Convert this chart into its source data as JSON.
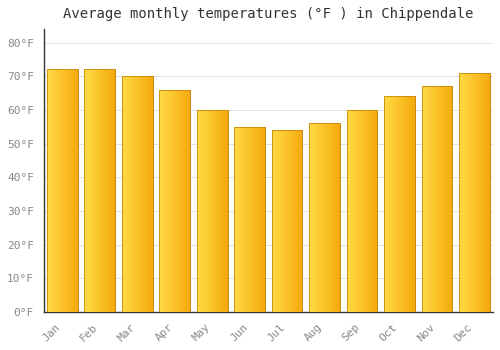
{
  "title": "Average monthly temperatures (°F ) in Chippendale",
  "months": [
    "Jan",
    "Feb",
    "Mar",
    "Apr",
    "May",
    "Jun",
    "Jul",
    "Aug",
    "Sep",
    "Oct",
    "Nov",
    "Dec"
  ],
  "values": [
    72,
    72,
    70,
    66,
    60,
    55,
    54,
    56,
    60,
    64,
    67,
    71
  ],
  "bar_color_left": "#FFCC44",
  "bar_color_right": "#F5A800",
  "bar_edge_color": "#C8880A",
  "background_color": "#FFFFFF",
  "yticks": [
    0,
    10,
    20,
    30,
    40,
    50,
    60,
    70,
    80
  ],
  "ylim": [
    0,
    84
  ],
  "ylabel_format": "{0}°F",
  "grid_color": "#E0E0E0",
  "title_fontsize": 10,
  "tick_fontsize": 8,
  "bar_width": 0.82
}
